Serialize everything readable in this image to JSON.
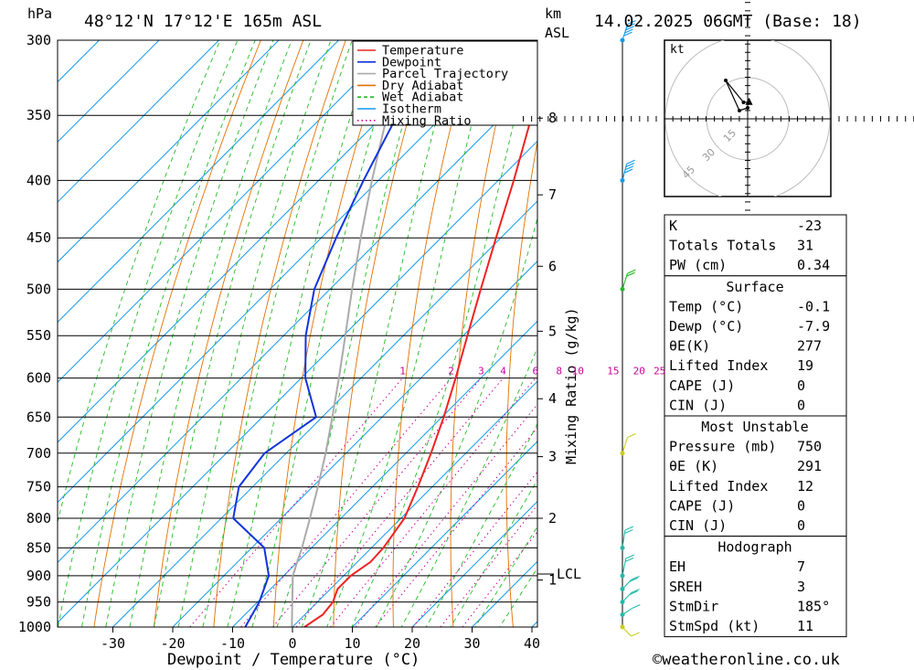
{
  "chart_data": {
    "type": "skew-t",
    "title": "48°12'N  17°12'E  165m  ASL",
    "date": "14.02.2025  06GMT  (Base: 18)",
    "y_unit": "hPa",
    "km_unit": [
      "km",
      "ASL"
    ],
    "xlabel": "Dewpoint / Temperature (°C)",
    "mixing_label": "Mixing Ratio (g/kg)",
    "lcl_label": "LCL",
    "lcl_pressure": 897,
    "pressure_levels": [
      300,
      350,
      400,
      450,
      500,
      550,
      600,
      650,
      700,
      750,
      800,
      850,
      900,
      950,
      1000
    ],
    "x_ticks": [
      -30,
      -20,
      -10,
      0,
      10,
      20,
      30,
      40
    ],
    "km_ticks": [
      {
        "label": "8",
        "p": 352
      },
      {
        "label": "7",
        "p": 412
      },
      {
        "label": "6",
        "p": 477
      },
      {
        "label": "5",
        "p": 545
      },
      {
        "label": "4",
        "p": 626
      },
      {
        "label": "3",
        "p": 705
      },
      {
        "label": "2",
        "p": 800
      },
      {
        "label": "1",
        "p": 908
      }
    ],
    "mixing_ratios": [
      {
        "label": "1",
        "value": 1
      },
      {
        "label": "2",
        "value": 2
      },
      {
        "label": "3",
        "value": 3
      },
      {
        "label": "4",
        "value": 4
      },
      {
        "label": "6",
        "value": 6
      },
      {
        "label": "8",
        "value": 8
      },
      {
        "label": "10",
        "value": 10
      },
      {
        "label": "15",
        "value": 15
      },
      {
        "label": "20",
        "value": 20
      },
      {
        "label": "25",
        "value": 25
      }
    ],
    "legend": [
      {
        "label": "Temperature",
        "color": "#ee2222",
        "style": "solid"
      },
      {
        "label": "Dewpoint",
        "color": "#1133dd",
        "style": "solid"
      },
      {
        "label": "Parcel Trajectory",
        "color": "#aaaaaa",
        "style": "solid"
      },
      {
        "label": "Dry Adiabat",
        "color": "#e07000",
        "style": "solid"
      },
      {
        "label": "Wet Adiabat",
        "color": "#22bb22",
        "style": "dashed"
      },
      {
        "label": "Isotherm",
        "color": "#1199ee",
        "style": "solid"
      },
      {
        "label": "Mixing Ratio",
        "color": "#cc0099",
        "style": "dotted"
      }
    ],
    "temperature": [
      {
        "p": 1000,
        "t": 2.0
      },
      {
        "p": 975,
        "t": 3.0
      },
      {
        "p": 950,
        "t": 2.6
      },
      {
        "p": 925,
        "t": 1.2
      },
      {
        "p": 900,
        "t": 1.2
      },
      {
        "p": 875,
        "t": 2.2
      },
      {
        "p": 850,
        "t": 2.0
      },
      {
        "p": 800,
        "t": 0.6
      },
      {
        "p": 750,
        "t": -2.4
      },
      {
        "p": 700,
        "t": -5.8
      },
      {
        "p": 650,
        "t": -9.7
      },
      {
        "p": 600,
        "t": -14.2
      },
      {
        "p": 550,
        "t": -19.3
      },
      {
        "p": 500,
        "t": -24.8
      },
      {
        "p": 450,
        "t": -30.8
      },
      {
        "p": 400,
        "t": -37.4
      },
      {
        "p": 350,
        "t": -45.2
      },
      {
        "p": 300,
        "t": -53.8
      }
    ],
    "dewpoint": [
      {
        "p": 1000,
        "t": -7.9
      },
      {
        "p": 950,
        "t": -9.7
      },
      {
        "p": 900,
        "t": -12.5
      },
      {
        "p": 850,
        "t": -17.9
      },
      {
        "p": 800,
        "t": -28.0
      },
      {
        "p": 750,
        "t": -32.3
      },
      {
        "p": 700,
        "t": -33.6
      },
      {
        "p": 650,
        "t": -31.0
      },
      {
        "p": 600,
        "t": -39.3
      },
      {
        "p": 550,
        "t": -46.3
      },
      {
        "p": 500,
        "t": -52.6
      },
      {
        "p": 450,
        "t": -57.5
      },
      {
        "p": 400,
        "t": -62.5
      },
      {
        "p": 350,
        "t": -67.7
      },
      {
        "p": 300,
        "t": -74.0
      }
    ],
    "parcel": [
      {
        "p": 1000,
        "t": -0.1
      },
      {
        "p": 950,
        "t": -4.2
      },
      {
        "p": 900,
        "t": -8.5
      },
      {
        "p": 850,
        "t": -11.6
      },
      {
        "p": 800,
        "t": -15.2
      },
      {
        "p": 750,
        "t": -19.1
      },
      {
        "p": 700,
        "t": -23.4
      },
      {
        "p": 650,
        "t": -28.3
      },
      {
        "p": 600,
        "t": -33.7
      },
      {
        "p": 550,
        "t": -39.7
      },
      {
        "p": 500,
        "t": -46.3
      },
      {
        "p": 450,
        "t": -53.4
      },
      {
        "p": 400,
        "t": -61.1
      },
      {
        "p": 350,
        "t": -69.4
      },
      {
        "p": 300,
        "t": -78.3
      }
    ],
    "wind_barbs": [
      {
        "p": 300,
        "color": "#1199ee",
        "dir": 330,
        "kt": 45
      },
      {
        "p": 400,
        "color": "#1199ee",
        "dir": 335,
        "kt": 40
      },
      {
        "p": 500,
        "color": "#22bb22",
        "dir": 330,
        "kt": 20
      },
      {
        "p": 700,
        "color": "#cccc22",
        "dir": 330,
        "kt": 10
      },
      {
        "p": 850,
        "color": "#22bbaa",
        "dir": 345,
        "kt": 15
      },
      {
        "p": 900,
        "color": "#22bbaa",
        "dir": 340,
        "kt": 15
      },
      {
        "p": 925,
        "color": "#22bbaa",
        "dir": 300,
        "kt": 15
      },
      {
        "p": 950,
        "color": "#22bbaa",
        "dir": 300,
        "kt": 15
      },
      {
        "p": 975,
        "color": "#22bbaa",
        "dir": 290,
        "kt": 10
      },
      {
        "p": 1000,
        "color": "#cccc22",
        "dir": 240,
        "kt": 10
      }
    ],
    "hodograph": {
      "unit": "kt",
      "ring_labels": [
        "15",
        "30",
        "45"
      ],
      "points": [
        {
          "u": -1.5,
          "v": 6
        },
        {
          "u": -8,
          "v": 14
        },
        {
          "u": -3,
          "v": 3
        },
        {
          "u": 0,
          "v": 4
        }
      ],
      "storm_motion": {
        "u": 0.9,
        "v": 11
      }
    }
  },
  "indices": [
    {
      "rows": [
        {
          "label": "K",
          "value": "-23"
        },
        {
          "label": "Totals Totals",
          "value": "31"
        },
        {
          "label": "PW (cm)",
          "value": "0.34"
        }
      ]
    },
    {
      "header": "Surface",
      "rows": [
        {
          "label": "Temp (°C)",
          "value": "-0.1"
        },
        {
          "label": "Dewp (°C)",
          "value": "-7.9"
        },
        {
          "label": "θE(K)",
          "value": "277"
        },
        {
          "label": "Lifted Index",
          "value": "19"
        },
        {
          "label": "CAPE (J)",
          "value": "0"
        },
        {
          "label": "CIN (J)",
          "value": "0"
        }
      ]
    },
    {
      "header": "Most Unstable",
      "rows": [
        {
          "label": "Pressure (mb)",
          "value": "750"
        },
        {
          "label": "θE (K)",
          "value": "291"
        },
        {
          "label": "Lifted Index",
          "value": "12"
        },
        {
          "label": "CAPE (J)",
          "value": "0"
        },
        {
          "label": "CIN (J)",
          "value": "0"
        }
      ]
    },
    {
      "header": "Hodograph",
      "rows": [
        {
          "label": "EH",
          "value": "7"
        },
        {
          "label": "SREH",
          "value": "3"
        },
        {
          "label": "StmDir",
          "value": "185°"
        },
        {
          "label": "StmSpd (kt)",
          "value": "11"
        }
      ]
    }
  ],
  "footer": "©weatheronline.co.uk"
}
